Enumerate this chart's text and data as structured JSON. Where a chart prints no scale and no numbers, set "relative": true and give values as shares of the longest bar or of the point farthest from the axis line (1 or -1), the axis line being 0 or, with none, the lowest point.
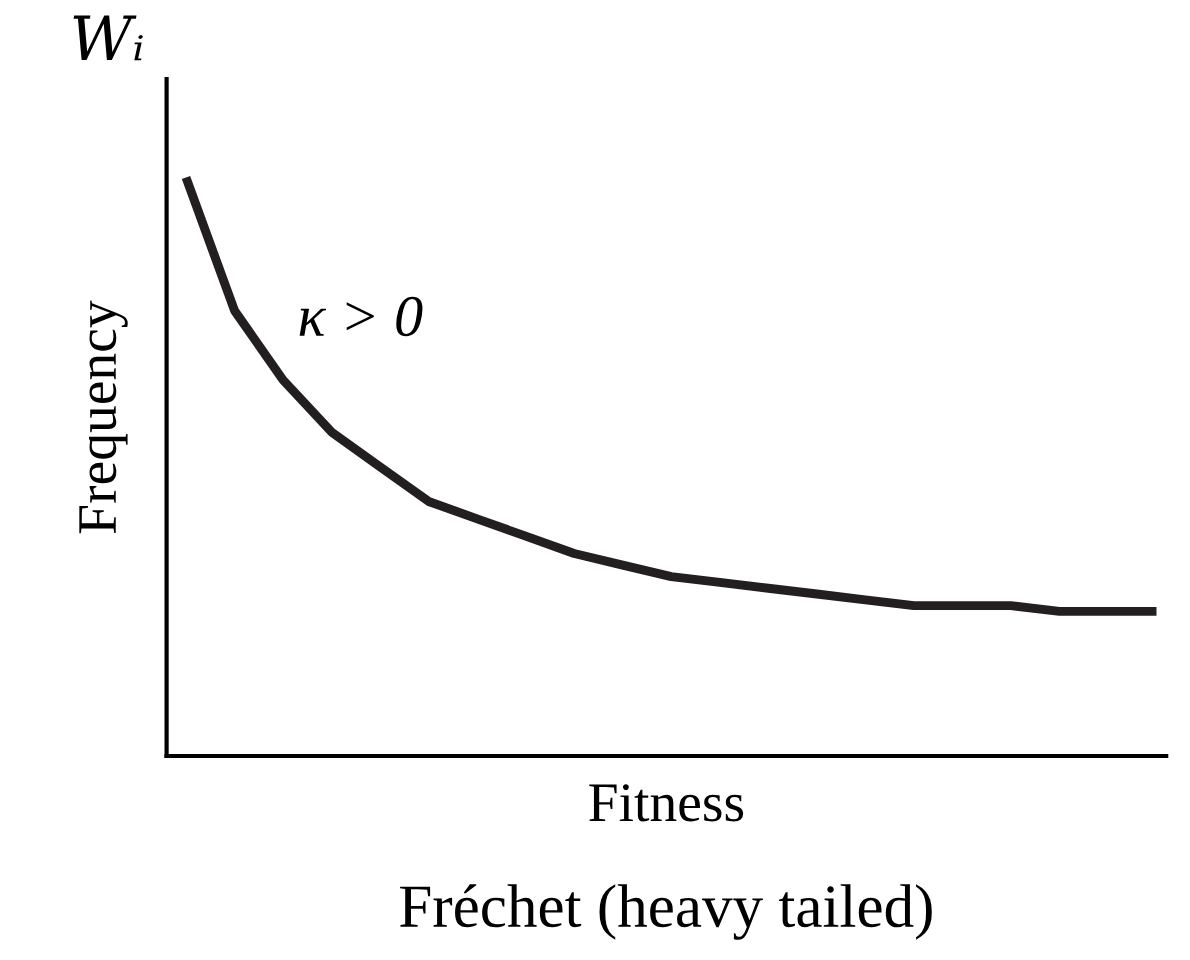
{
  "chart_data": {
    "type": "line",
    "relative": true,
    "xlabel": "Fitness",
    "ylabel": "Frequency",
    "annotations": [
      "Wᵢ",
      "κ > 0",
      "Fréchet (heavy tailed)"
    ],
    "categories": [
      null,
      null,
      null,
      null,
      null,
      null,
      null,
      null,
      null,
      null,
      null,
      null,
      null,
      null,
      null,
      null,
      null,
      null,
      null,
      null,
      null
    ],
    "series": [
      {
        "color": "#231f20",
        "values": [
          1,
          0.77,
          0.65,
          0.56,
          0.5,
          0.44,
          0.41,
          0.38,
          0.35,
          0.33,
          0.31,
          0.3,
          0.29,
          0.28,
          0.27,
          0.26,
          0.26,
          0.26,
          0.25,
          0.25,
          0.25
        ]
      }
    ],
    "grid": false,
    "legend": false
  }
}
